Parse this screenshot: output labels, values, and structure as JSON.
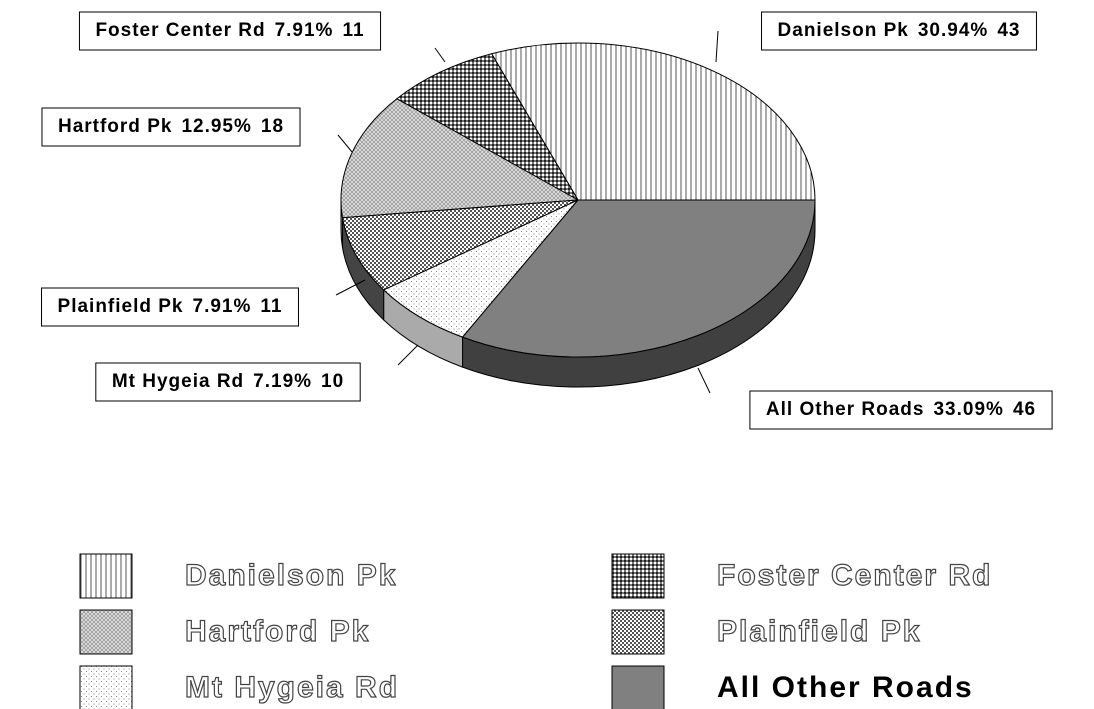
{
  "chart_data": {
    "type": "pie3d",
    "categories": [
      "Danielson Pk",
      "Foster Center Rd",
      "Hartford Pk",
      "Plainfield Pk",
      "Mt Hygeia Rd",
      "All Other Roads"
    ],
    "values": [
      43,
      11,
      18,
      11,
      10,
      46
    ],
    "percent_labels": [
      "30.94%",
      "7.91%",
      "12.95%",
      "7.91%",
      "7.19%",
      "33.09%"
    ],
    "legend": true
  }
}
